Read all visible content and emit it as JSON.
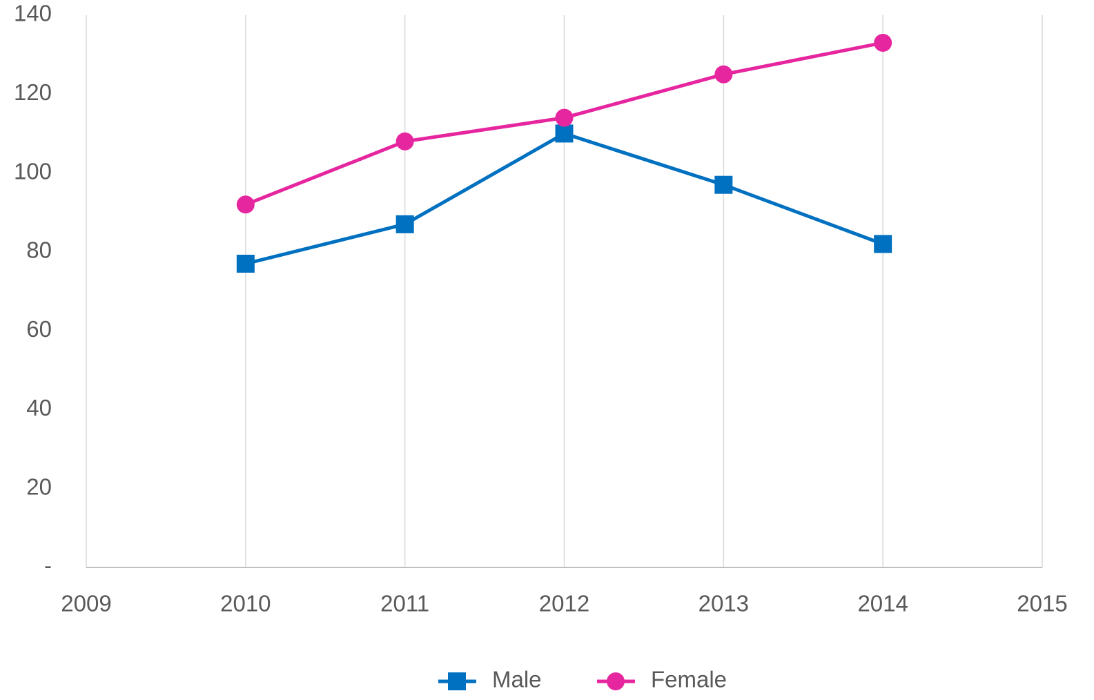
{
  "chart_data": {
    "type": "line",
    "x": [
      2010,
      2011,
      2012,
      2013,
      2014
    ],
    "series": [
      {
        "name": "Male",
        "color": "#0070c0",
        "marker": "square",
        "values": [
          77,
          87,
          110,
          97,
          82
        ]
      },
      {
        "name": "Female",
        "color": "#e6269f",
        "marker": "circle",
        "values": [
          92,
          108,
          114,
          125,
          133
        ]
      }
    ],
    "xlim": [
      2009,
      2015
    ],
    "xticks": [
      2009,
      2010,
      2011,
      2012,
      2013,
      2014,
      2015
    ],
    "ylim": [
      0,
      140
    ],
    "yticks": [
      {
        "value": 0,
        "label": "-"
      },
      20,
      40,
      60,
      80,
      100,
      120,
      140
    ],
    "grid": "x",
    "legend": "bottom"
  }
}
